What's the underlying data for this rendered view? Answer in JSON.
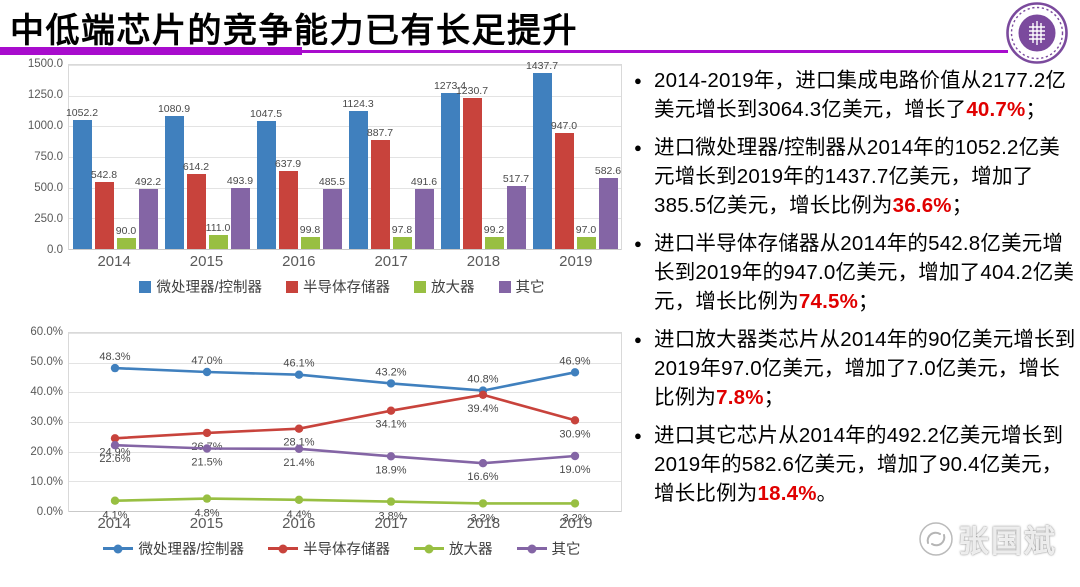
{
  "slide": {
    "title": "中低端芯片的竞争能力已有长足提升",
    "accent_color": "#a80ccd",
    "highlight_color": "#e00000",
    "logo_color": "#7b4a9d"
  },
  "chart_data": [
    {
      "type": "bar",
      "categories": [
        "2014",
        "2015",
        "2016",
        "2017",
        "2018",
        "2019"
      ],
      "series": [
        {
          "name": "微处理器/控制器",
          "color": "#4080be",
          "values": [
            1052.2,
            1080.9,
            1047.5,
            1124.3,
            1273.4,
            1437.7
          ]
        },
        {
          "name": "半导体存储器",
          "color": "#c8433c",
          "values": [
            542.8,
            614.2,
            637.9,
            887.7,
            1230.7,
            947.0
          ]
        },
        {
          "name": "放大器",
          "color": "#98bf42",
          "values": [
            90.0,
            111.0,
            99.8,
            97.8,
            99.2,
            97.0
          ]
        },
        {
          "name": "其它",
          "color": "#8465a5",
          "values": [
            492.2,
            493.9,
            485.5,
            491.6,
            517.7,
            582.6
          ]
        }
      ],
      "ylim": [
        0,
        1500
      ],
      "yticks": [
        "1500.0",
        "1250.0",
        "1000.0",
        "750.0",
        "500.0",
        "250.0",
        "0.0"
      ],
      "grid": true,
      "legend_position": "bottom",
      "data_labels": true
    },
    {
      "type": "line",
      "categories": [
        "2014",
        "2015",
        "2016",
        "2017",
        "2018",
        "2019"
      ],
      "series": [
        {
          "name": "微处理器/控制器",
          "color": "#4080be",
          "values": [
            48.3,
            47.0,
            46.1,
            43.2,
            40.8,
            46.9
          ]
        },
        {
          "name": "半导体存储器",
          "color": "#c8433c",
          "values": [
            24.9,
            26.7,
            28.1,
            34.1,
            39.4,
            30.9
          ]
        },
        {
          "name": "放大器",
          "color": "#98bf42",
          "values": [
            4.1,
            4.8,
            4.4,
            3.8,
            3.2,
            3.2
          ]
        },
        {
          "name": "其它",
          "color": "#8465a5",
          "values": [
            22.6,
            21.5,
            21.4,
            18.9,
            16.6,
            19.0
          ]
        }
      ],
      "ylim": [
        0,
        60
      ],
      "yticks": [
        "60.0%",
        "50.0%",
        "40.0%",
        "30.0%",
        "20.0%",
        "10.0%",
        "0.0%"
      ],
      "grid": true,
      "legend_position": "bottom",
      "data_labels": true
    }
  ],
  "bullets": [
    {
      "before": "2014-2019年，进口集成电路价值从2177.2亿美元增长到3064.3亿美元，增长了",
      "highlight": "40.7%",
      "after": "；"
    },
    {
      "before": "进口微处理器/控制器从2014年的1052.2亿美元增长到2019年的1437.7亿美元，增加了385.5亿美元，增长比例为",
      "highlight": "36.6%",
      "after": "；"
    },
    {
      "before": "进口半导体存储器从2014年的542.8亿美元增长到2019年的947.0亿美元，增加了404.2亿美元，增长比例为",
      "highlight": "74.5%",
      "after": "；"
    },
    {
      "before": "进口放大器类芯片从2014年的90亿美元增长到2019年97.0亿美元，增加了7.0亿美元，增长比例为",
      "highlight": "7.8%",
      "after": "；"
    },
    {
      "before": "进口其它芯片从2014年的492.2亿美元增长到2019年的582.6亿美元，增加了90.4亿美元，增长比例为",
      "highlight": "18.4%",
      "after": "。"
    }
  ],
  "watermark": {
    "label": "张国斌",
    "icon": "publisher-badge-icon"
  }
}
